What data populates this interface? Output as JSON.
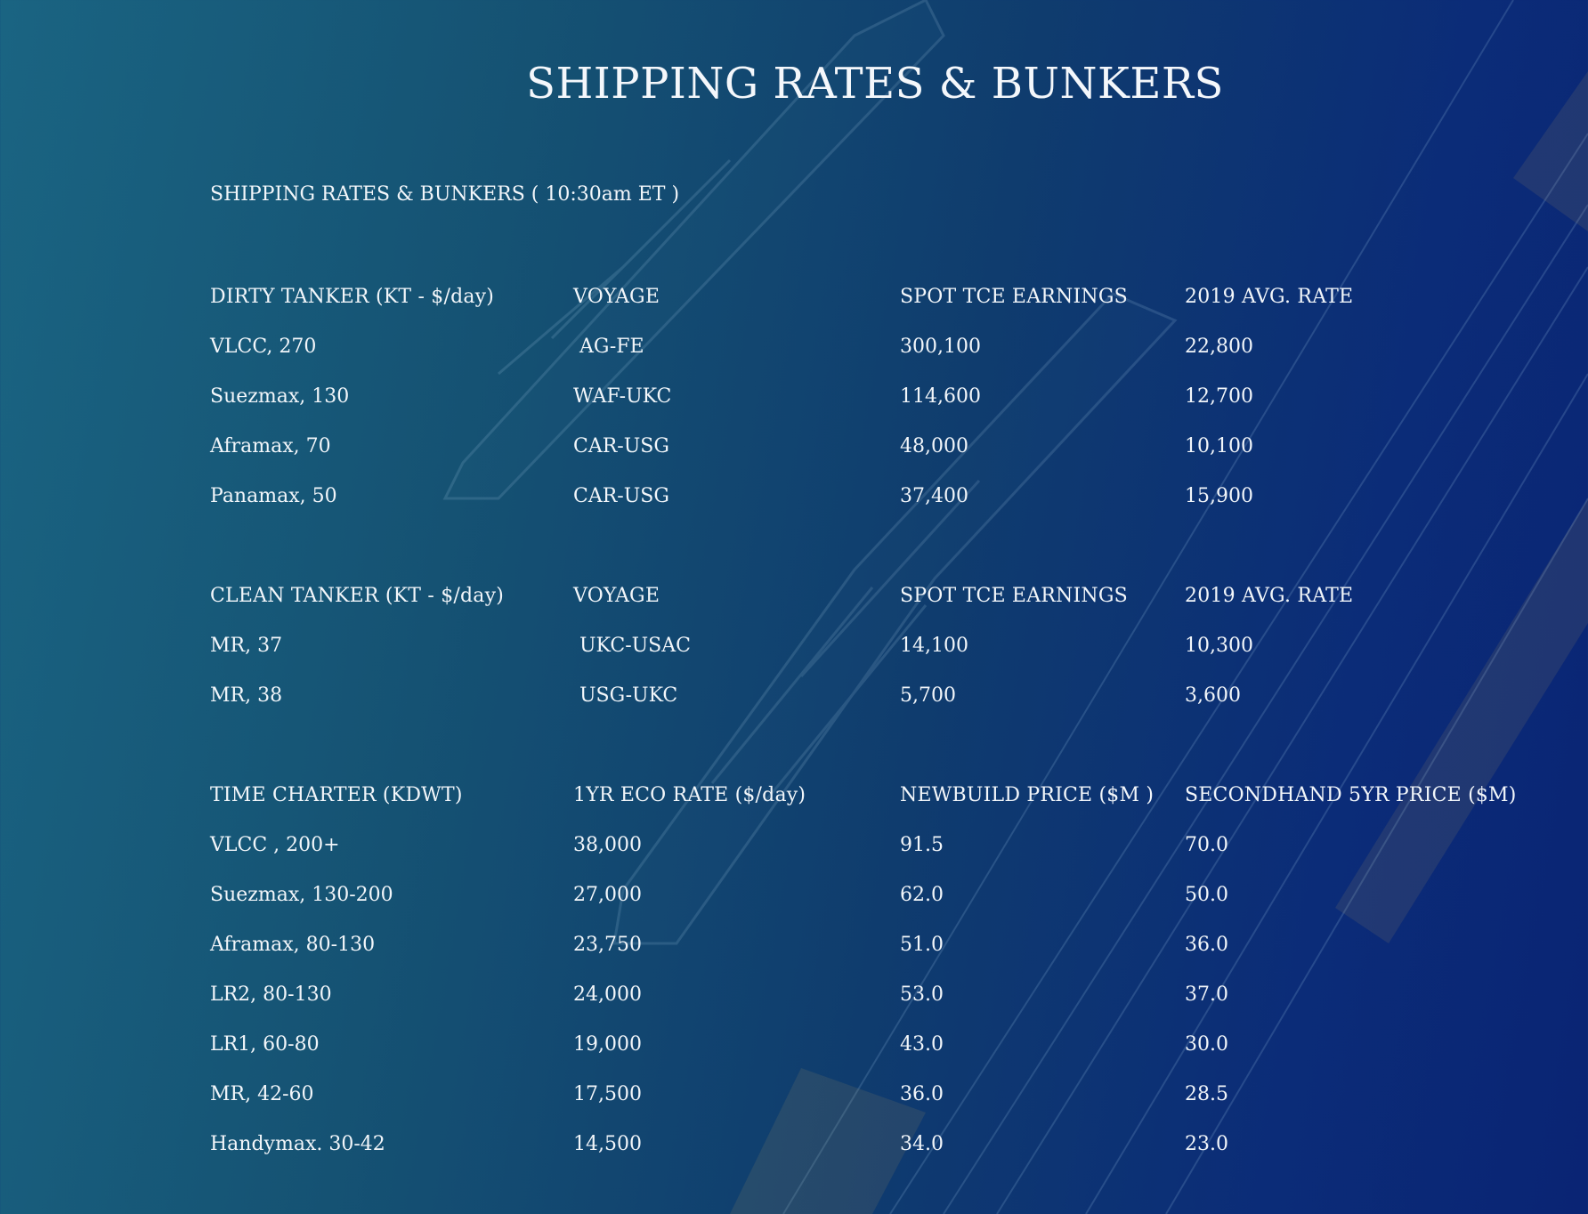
{
  "title": "SHIPPING RATES & BUNKERS",
  "subtitle": "SHIPPING RATES & BUNKERS ( 10:30am ET )",
  "tables": {
    "dirty": {
      "headers": [
        "DIRTY TANKER (KT - $/day)",
        "VOYAGE",
        "SPOT TCE EARNINGS",
        "2019 AVG. RATE"
      ],
      "rows": [
        [
          "VLCC, 270",
          " AG-FE",
          "300,100",
          "22,800"
        ],
        [
          "Suezmax, 130",
          "WAF-UKC",
          "114,600",
          "12,700"
        ],
        [
          "Aframax, 70",
          "CAR-USG",
          "48,000",
          "10,100"
        ],
        [
          "Panamax, 50",
          "CAR-USG",
          "37,400",
          "15,900"
        ]
      ]
    },
    "clean": {
      "headers": [
        "CLEAN TANKER (KT - $/day)",
        "VOYAGE",
        "SPOT TCE EARNINGS",
        "2019 AVG. RATE"
      ],
      "rows": [
        [
          "MR, 37",
          " UKC-USAC",
          "14,100",
          "10,300"
        ],
        [
          "MR, 38",
          " USG-UKC",
          "5,700",
          "3,600"
        ]
      ]
    },
    "charter": {
      "headers": [
        "TIME CHARTER (KDWT)",
        "1YR ECO RATE ($/day)",
        "NEWBUILD PRICE ($M )",
        "SECONDHAND 5YR PRICE ($M)"
      ],
      "rows": [
        [
          "VLCC , 200+",
          "38,000",
          "91.5",
          "70.0"
        ],
        [
          "Suezmax, 130-200",
          "27,000",
          "62.0",
          "50.0"
        ],
        [
          "Aframax, 80-130",
          "23,750",
          "51.0",
          "36.0"
        ],
        [
          "LR2, 80-130",
          "24,000",
          "53.0",
          "37.0"
        ],
        [
          "LR1, 60-80",
          "19,000",
          "43.0",
          "30.0"
        ],
        [
          "MR, 42-60",
          "17,500",
          "36.0",
          "28.5"
        ],
        [
          "Handymax. 30-42",
          "14,500",
          "34.0",
          "23.0"
        ]
      ]
    }
  }
}
